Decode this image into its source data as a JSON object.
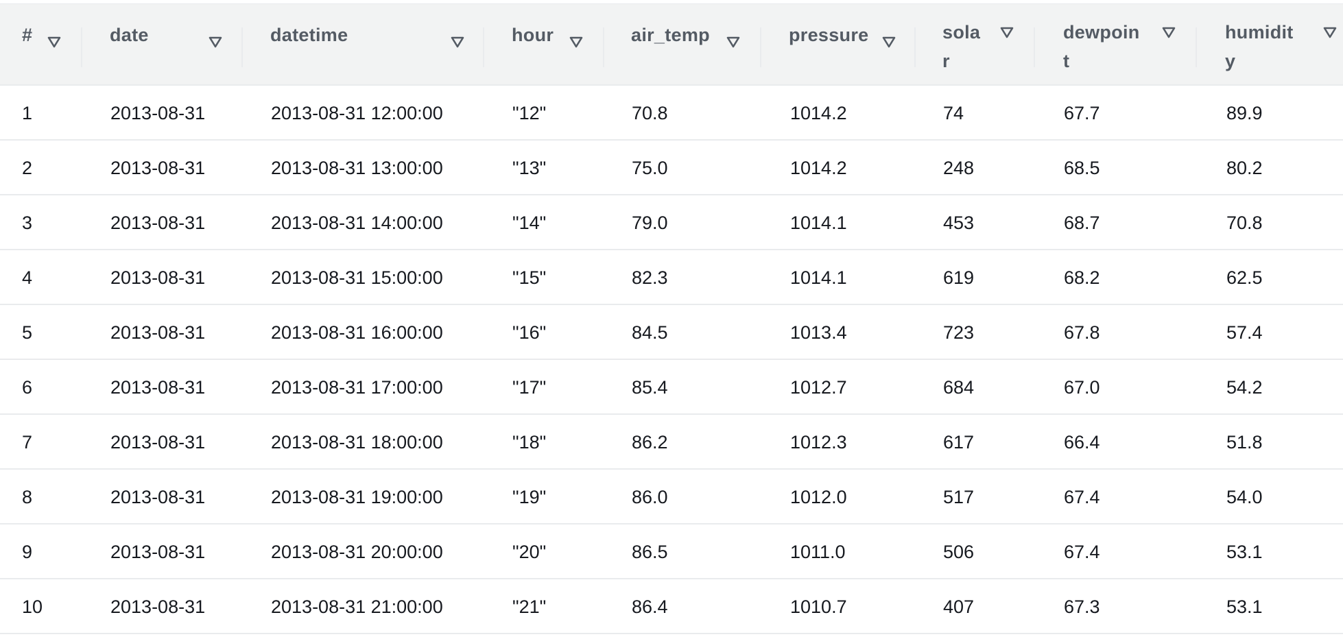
{
  "table": {
    "columns": [
      {
        "key": "num",
        "label": "#"
      },
      {
        "key": "date",
        "label": "date"
      },
      {
        "key": "datetime",
        "label": "datetime"
      },
      {
        "key": "hour",
        "label": "hour"
      },
      {
        "key": "air_temp",
        "label": "air_temp"
      },
      {
        "key": "pressure",
        "label": "pressure"
      },
      {
        "key": "solar",
        "label": "sola\nr"
      },
      {
        "key": "dewpoint",
        "label": "dewpoin\nt"
      },
      {
        "key": "humidity",
        "label": "humidit\ny"
      }
    ],
    "sort_icon": "sort-triangle-down-icon",
    "rows": [
      [
        "1",
        "2013-08-31",
        "2013-08-31 12:00:00",
        "\"12\"",
        "70.8",
        "1014.2",
        "74",
        "67.7",
        "89.9"
      ],
      [
        "2",
        "2013-08-31",
        "2013-08-31 13:00:00",
        "\"13\"",
        "75.0",
        "1014.2",
        "248",
        "68.5",
        "80.2"
      ],
      [
        "3",
        "2013-08-31",
        "2013-08-31 14:00:00",
        "\"14\"",
        "79.0",
        "1014.1",
        "453",
        "68.7",
        "70.8"
      ],
      [
        "4",
        "2013-08-31",
        "2013-08-31 15:00:00",
        "\"15\"",
        "82.3",
        "1014.1",
        "619",
        "68.2",
        "62.5"
      ],
      [
        "5",
        "2013-08-31",
        "2013-08-31 16:00:00",
        "\"16\"",
        "84.5",
        "1013.4",
        "723",
        "67.8",
        "57.4"
      ],
      [
        "6",
        "2013-08-31",
        "2013-08-31 17:00:00",
        "\"17\"",
        "85.4",
        "1012.7",
        "684",
        "67.0",
        "54.2"
      ],
      [
        "7",
        "2013-08-31",
        "2013-08-31 18:00:00",
        "\"18\"",
        "86.2",
        "1012.3",
        "617",
        "66.4",
        "51.8"
      ],
      [
        "8",
        "2013-08-31",
        "2013-08-31 19:00:00",
        "\"19\"",
        "86.0",
        "1012.0",
        "517",
        "67.4",
        "54.0"
      ],
      [
        "9",
        "2013-08-31",
        "2013-08-31 20:00:00",
        "\"20\"",
        "86.5",
        "1011.0",
        "506",
        "67.4",
        "53.1"
      ],
      [
        "10",
        "2013-08-31",
        "2013-08-31 21:00:00",
        "\"21\"",
        "86.4",
        "1010.7",
        "407",
        "67.3",
        "53.1"
      ]
    ]
  }
}
